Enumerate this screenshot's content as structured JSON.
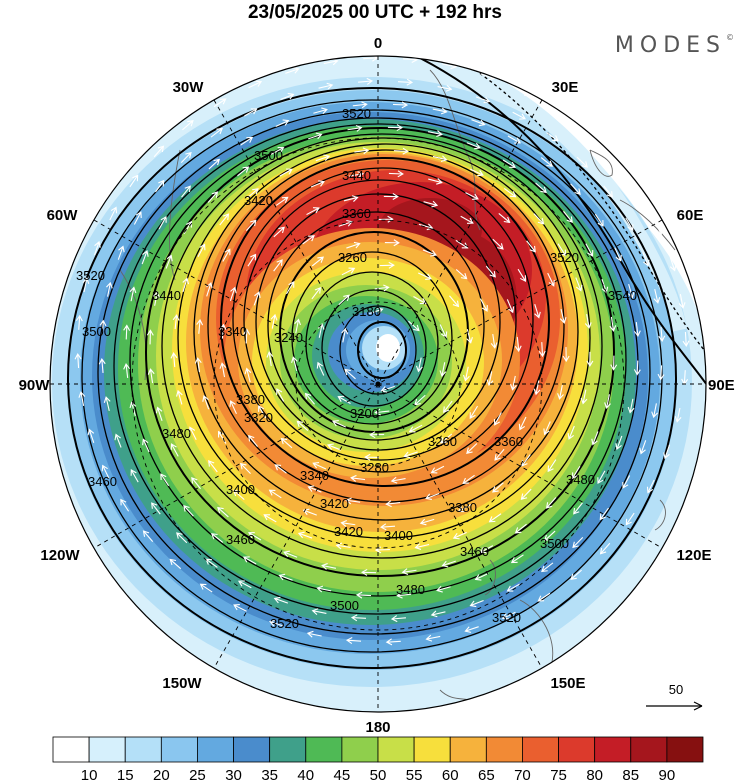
{
  "header": {
    "title": "23/05/2025  00 UTC  + 192 hrs",
    "brand": "MODES",
    "brand_mark": "©"
  },
  "map": {
    "projection": "north-polar-stereographic",
    "longitude_labels": {
      "0": "0",
      "30E": "30E",
      "60E": "60E",
      "90E": "90E",
      "120E": "120E",
      "150E": "150E",
      "180": "180",
      "150W": "150W",
      "120W": "120W",
      "90W": "90W",
      "60W": "60W",
      "30W": "30W"
    },
    "shading_field": "wind speed",
    "contour_field": "geopotential height",
    "contour_labels": [
      "3520",
      "3500",
      "3440",
      "3420",
      "3360",
      "3260",
      "3180",
      "3240",
      "3340",
      "3440",
      "3500",
      "3520",
      "3480",
      "3460",
      "3420",
      "3400",
      "3340",
      "3280",
      "3200",
      "3260",
      "3360",
      "3380",
      "3480",
      "3500",
      "3520",
      "3540",
      "3460",
      "3400",
      "3380",
      "3320",
      "3420",
      "3520",
      "3500",
      "3460",
      "3480",
      "3520"
    ],
    "vector_reference": {
      "label": "50"
    }
  },
  "colorbar": {
    "ticks": [
      "10",
      "15",
      "20",
      "25",
      "30",
      "35",
      "40",
      "45",
      "50",
      "55",
      "60",
      "65",
      "70",
      "75",
      "80",
      "85",
      "90"
    ],
    "colors": [
      "#ffffff",
      "#d6f0fc",
      "#b4e0f8",
      "#8ac6ef",
      "#63a9e0",
      "#4a8ccc",
      "#3fa08a",
      "#4fba55",
      "#8fcf4c",
      "#c8df48",
      "#f7df3c",
      "#f6b23c",
      "#f28a35",
      "#ea5f2f",
      "#dc3a2c",
      "#c41d26",
      "#a5161d",
      "#861010"
    ]
  }
}
